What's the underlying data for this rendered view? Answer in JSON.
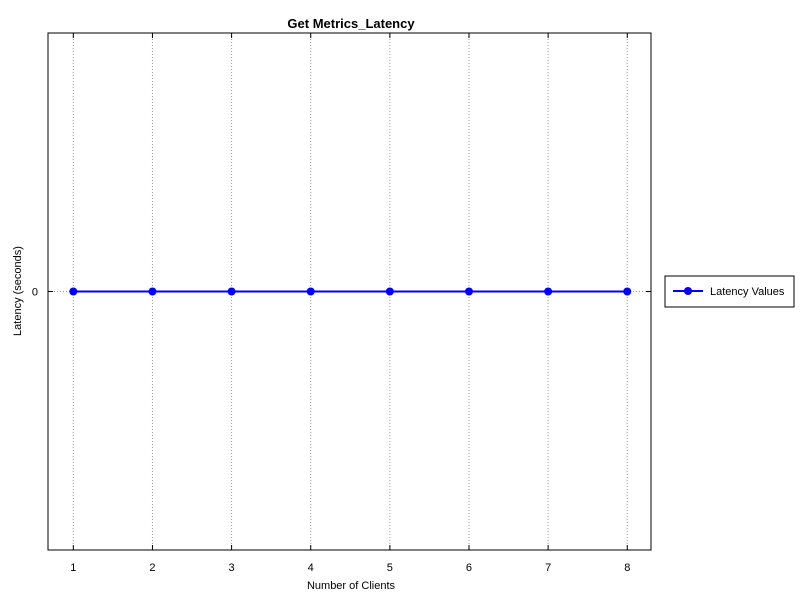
{
  "chart_data": {
    "type": "line",
    "title": "Get Metrics_Latency",
    "xlabel": "Number of Clients",
    "ylabel": "Latency (seconds)",
    "x": [
      1,
      2,
      3,
      4,
      5,
      6,
      7,
      8
    ],
    "x_ticks": [
      "1",
      "2",
      "3",
      "4",
      "5",
      "6",
      "7",
      "8"
    ],
    "y_ticks": [
      "0"
    ],
    "ylim": [
      -1,
      1
    ],
    "grid": "vertical dotted",
    "legend_position": "right",
    "series": [
      {
        "name": "Latency Values",
        "values": [
          0,
          0,
          0,
          0,
          0,
          0,
          0,
          0
        ],
        "color": "#0000ff",
        "marker": "circle"
      }
    ]
  }
}
